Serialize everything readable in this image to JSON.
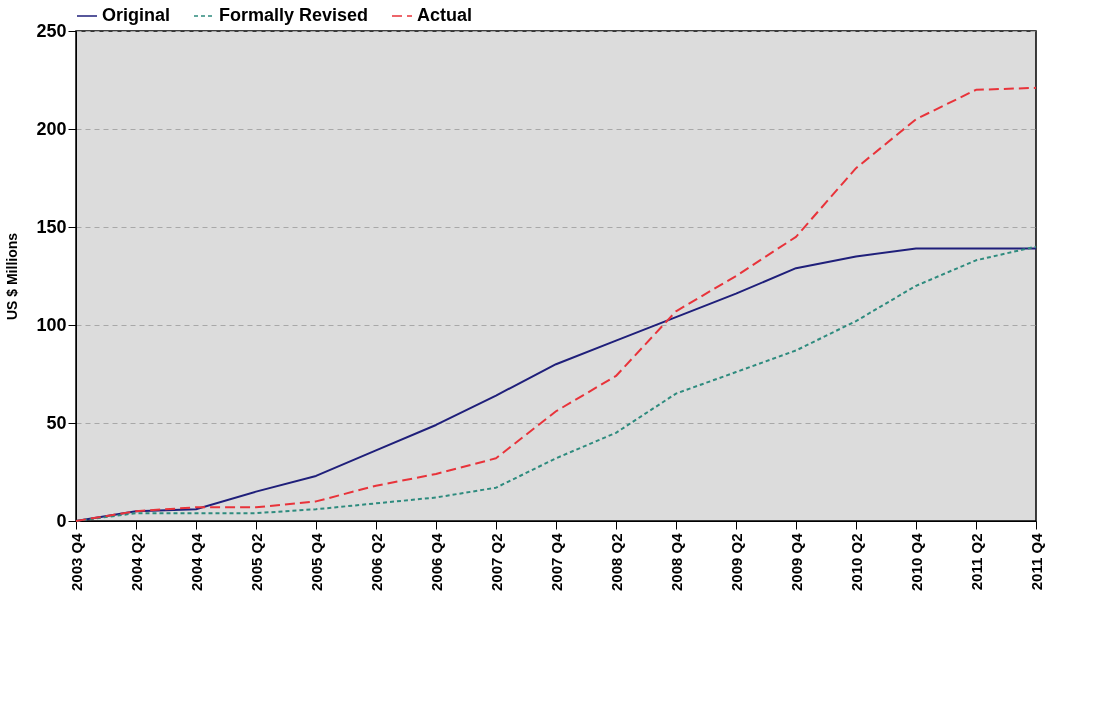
{
  "chart_data": {
    "type": "line",
    "ylabel": "US $ Millions",
    "categories": [
      "2003 Q4",
      "2004 Q2",
      "2004 Q4",
      "2005 Q2",
      "2005 Q4",
      "2006 Q2",
      "2006 Q4",
      "2007 Q2",
      "2007 Q4",
      "2008 Q2",
      "2008 Q4",
      "2009 Q2",
      "2009 Q4",
      "2010 Q2",
      "2010 Q4",
      "2011 Q2",
      "2011 Q4"
    ],
    "series": [
      {
        "name": "Original",
        "color": "#1f1f7a",
        "line_style": "solid",
        "values": [
          0,
          5,
          6,
          15,
          23,
          36,
          49,
          64,
          80,
          92,
          104,
          116,
          129,
          135,
          139,
          139,
          139
        ]
      },
      {
        "name": "Formally Revised",
        "color": "#2e8b7e",
        "line_style": "dotted",
        "values": [
          0,
          4,
          4,
          4,
          6,
          9,
          12,
          17,
          32,
          45,
          65,
          76,
          87,
          102,
          120,
          133,
          140
        ]
      },
      {
        "name": "Actual",
        "color": "#e8333a",
        "line_style": "dashed",
        "values": [
          0,
          5,
          7,
          7,
          10,
          18,
          24,
          32,
          56,
          74,
          107,
          125,
          145,
          180,
          205,
          220,
          221
        ]
      }
    ],
    "ylim": [
      0,
      250
    ],
    "yticks": [
      0,
      50,
      100,
      150,
      200,
      250
    ],
    "grid": "y",
    "legend": "top"
  }
}
